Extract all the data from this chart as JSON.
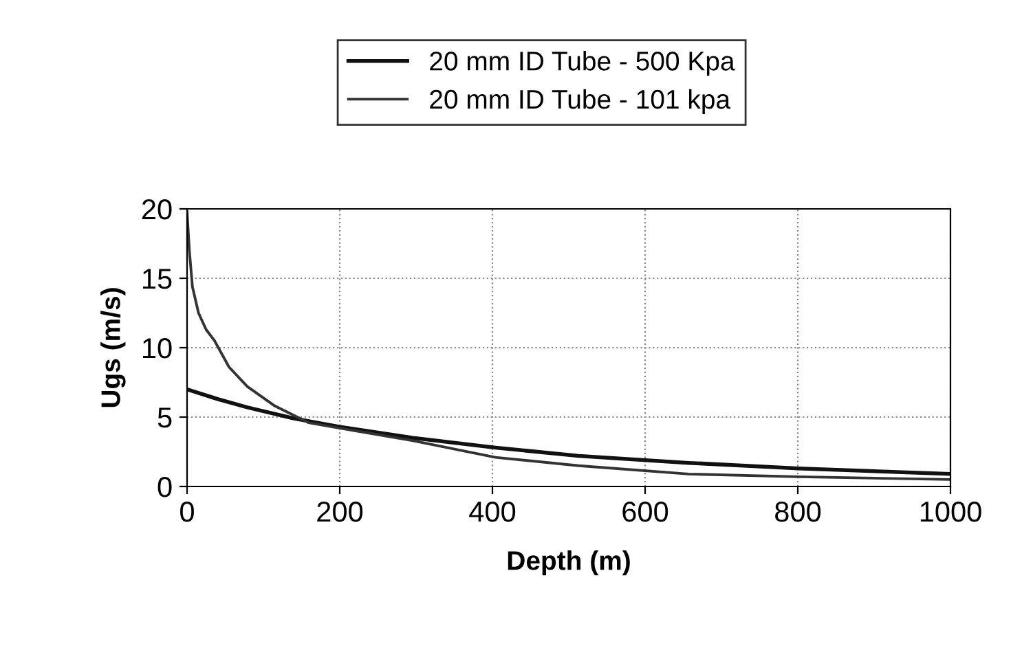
{
  "chart_data": {
    "type": "line",
    "xlabel": "Depth (m)",
    "ylabel": "Ugs (m/s)",
    "xlim": [
      0,
      1000
    ],
    "xticks": [
      0,
      200,
      400,
      600,
      800,
      1000
    ],
    "ylim": [
      0,
      20
    ],
    "yticks": [
      0,
      5,
      10,
      15,
      20
    ],
    "grid": true,
    "legend": "top",
    "marker": "none",
    "line_style": "solid",
    "series": [
      {
        "name": "20 mm ID Tube - 500 Kpa",
        "color": "#111111",
        "x": [
          0,
          40,
          79,
          140,
          200,
          296,
          404,
          513,
          657,
          801,
          1000
        ],
        "values": [
          7.0,
          6.3,
          5.7,
          4.9,
          4.3,
          3.5,
          2.8,
          2.2,
          1.7,
          1.3,
          0.9
        ]
      },
      {
        "name": "20 mm ID Tube - 101 kpa",
        "color": "#333333",
        "x": [
          0,
          3,
          7,
          15,
          25,
          36,
          55,
          79,
          115,
          159,
          200,
          296,
          404,
          513,
          657,
          801,
          1000
        ],
        "values": [
          19.8,
          17.0,
          14.4,
          12.5,
          11.3,
          10.5,
          8.6,
          7.2,
          5.8,
          4.6,
          4.2,
          3.3,
          2.1,
          1.5,
          0.9,
          0.7,
          0.5
        ]
      }
    ]
  }
}
